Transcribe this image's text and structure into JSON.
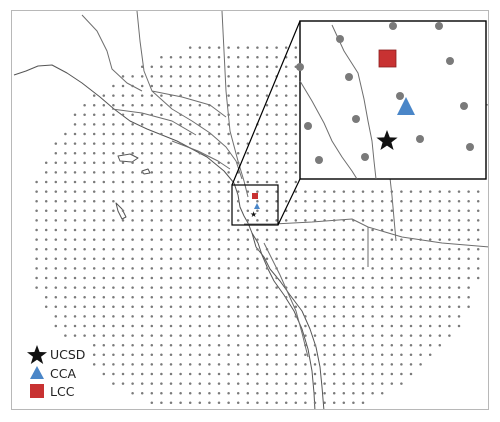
{
  "legend": {
    "items": [
      {
        "key": "ucsd",
        "label": "UCSD",
        "marker": "star",
        "color": "#111111"
      },
      {
        "key": "cca",
        "label": "CCA",
        "marker": "triangle",
        "color": "#4a86c8"
      },
      {
        "key": "lcc",
        "label": "LCC",
        "marker": "square",
        "color": "#c83232"
      }
    ]
  },
  "colors": {
    "grid_points": "#7a7a7a",
    "borders": "#6e6e6e",
    "inset_frame": "#000000"
  }
}
